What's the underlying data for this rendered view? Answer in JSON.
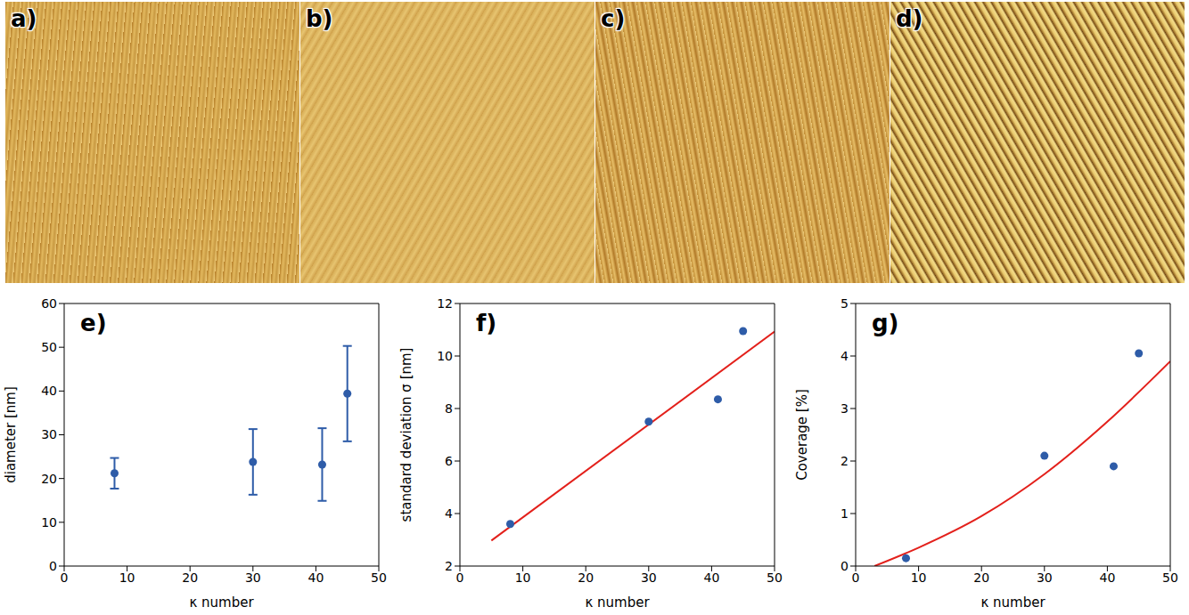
{
  "images": [
    {
      "type": "image",
      "label": "a)"
    },
    {
      "type": "image",
      "label": "b)"
    },
    {
      "type": "image",
      "label": "c)"
    },
    {
      "type": "image",
      "label": "d)"
    }
  ],
  "chart_data": [
    {
      "type": "scatter",
      "panel": "e)",
      "xlabel": "κ number",
      "ylabel": "diameter [nm]",
      "xlim": [
        0,
        50
      ],
      "xticks": [
        0,
        10,
        20,
        30,
        40,
        50
      ],
      "ylim": [
        0,
        60
      ],
      "yticks": [
        0,
        10,
        20,
        30,
        40,
        50,
        60
      ],
      "series": [
        {
          "type": "scatter",
          "color": "#2e5ca8",
          "marker": "circle",
          "x": [
            8,
            30,
            41,
            45
          ],
          "values": [
            21.2,
            23.8,
            23.2,
            39.4
          ],
          "errors": [
            3.5,
            7.5,
            8.3,
            10.9
          ]
        }
      ]
    },
    {
      "type": "scatter",
      "panel": "f)",
      "xlabel": "κ number",
      "ylabel": "standard deviation σ [nm]",
      "xlim": [
        0,
        50
      ],
      "xticks": [
        0,
        10,
        20,
        30,
        40,
        50
      ],
      "ylim": [
        2,
        12
      ],
      "yticks": [
        2,
        4,
        6,
        8,
        10,
        12
      ],
      "series": [
        {
          "type": "line",
          "color": "#e3201b",
          "line_style": "solid",
          "x": [
            5,
            50
          ],
          "values": [
            2.97,
            10.93
          ]
        },
        {
          "type": "scatter",
          "color": "#2e5ca8",
          "marker": "circle",
          "x": [
            8,
            30,
            41,
            45
          ],
          "values": [
            3.6,
            7.5,
            8.35,
            10.95
          ]
        }
      ]
    },
    {
      "type": "scatter",
      "panel": "g)",
      "xlabel": "κ number",
      "ylabel": "Coverage [%]",
      "xlim": [
        0,
        50
      ],
      "xticks": [
        0,
        10,
        20,
        30,
        40,
        50
      ],
      "ylim": [
        0,
        5
      ],
      "yticks": [
        0,
        1,
        2,
        3,
        4,
        5
      ],
      "series": [
        {
          "type": "line",
          "color": "#e3201b",
          "line_style": "solid",
          "x": [
            3,
            10,
            20,
            30,
            40,
            50
          ],
          "values": [
            0,
            0.35,
            0.95,
            1.75,
            2.75,
            3.9
          ]
        },
        {
          "type": "scatter",
          "color": "#2e5ca8",
          "marker": "circle",
          "x": [
            8,
            30,
            41,
            45
          ],
          "values": [
            0.15,
            2.1,
            1.9,
            4.05
          ]
        }
      ]
    }
  ]
}
